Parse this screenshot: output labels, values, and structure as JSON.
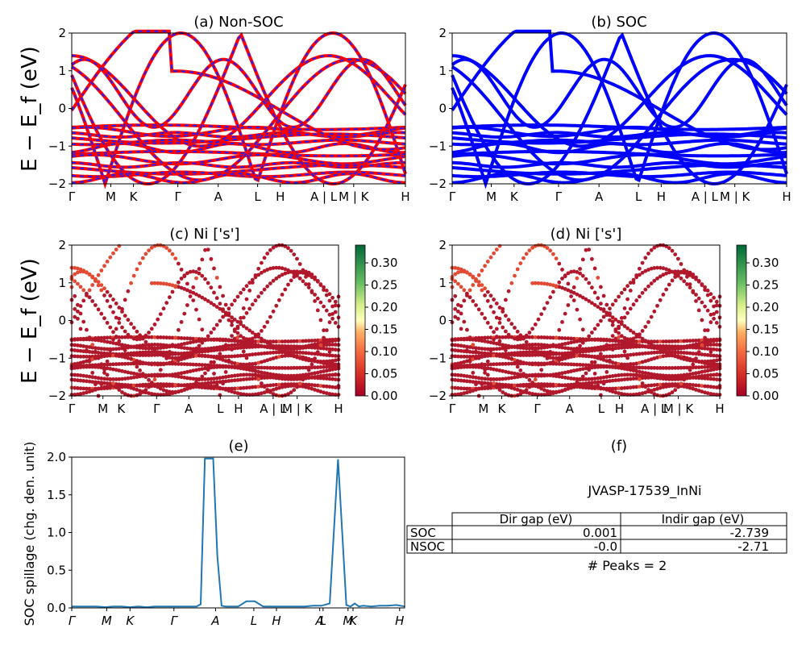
{
  "panels": {
    "a": {
      "title": "(a) Non-SOC",
      "ylabel": "E − E_f (eV)"
    },
    "b": {
      "title": "(b) SOC"
    },
    "c": {
      "title": "(c)  Ni ['s']",
      "ylabel": "E − E_f (eV)"
    },
    "d": {
      "title": "(d) Ni ['s']"
    },
    "e": {
      "title": "(e)",
      "ylabel": "SOC spillage (chg. den. unit)"
    },
    "f": {
      "title": "(f)",
      "material": "JVASP-17539_InNi",
      "peaks": "# Peaks = 2"
    }
  },
  "kpath_labels": [
    "Γ",
    "M",
    "K",
    "Γ",
    "A",
    "L",
    "H",
    "A | L",
    "M | K",
    "H"
  ],
  "kpath_labels_cd": [
    "Γ",
    "M",
    "K",
    "Γ",
    "A",
    "L",
    "H",
    "A | L",
    "M | K",
    "H"
  ],
  "kpath_labels_e": [
    "Γ",
    "M",
    "K",
    "Γ",
    "A",
    "L",
    "H",
    "A",
    "L",
    "M",
    "K",
    "H"
  ],
  "energy_ticks": [
    "2",
    "1",
    "0",
    "−1",
    "−2"
  ],
  "spillage_ticks": [
    "2.0",
    "1.5",
    "1.0",
    "0.5",
    "0.0"
  ],
  "colorbar_ticks": [
    "0.30",
    "0.25",
    "0.20",
    "0.15",
    "0.10",
    "0.05",
    "0.00"
  ],
  "gap_table": {
    "headers": [
      "",
      "Dir gap (eV)",
      "Indir gap (eV)"
    ],
    "rows": [
      {
        "label": "SOC",
        "dir": "0.001",
        "indir": "-2.739"
      },
      {
        "label": "NSOC",
        "dir": "-0.0",
        "indir": "-2.71"
      }
    ]
  },
  "colors": {
    "nonsoc": "#ff0000",
    "nonsoc_dash": "#1f1fff",
    "soc": "#0000ff",
    "spillage": "#1f77b4"
  },
  "chart_data": [
    {
      "type": "line",
      "title": "(e)",
      "ylabel": "SOC spillage (chg. den. unit)",
      "ylim": [
        0,
        2.05
      ],
      "x_labels": [
        "Γ",
        "M",
        "K",
        "Γ",
        "A",
        "L",
        "H",
        "A",
        "L",
        "M",
        "K",
        "H"
      ],
      "x": [
        0,
        0.1,
        0.2,
        0.3,
        0.4,
        0.5,
        0.6,
        0.7,
        0.8,
        0.9,
        1.0,
        1.1,
        1.2,
        1.3,
        1.4,
        1.5,
        1.55,
        1.6,
        1.65,
        1.7,
        1.75,
        1.8,
        1.85,
        1.9,
        1.95,
        2.0,
        2.1,
        2.2,
        2.3,
        2.4,
        2.5,
        2.6,
        2.7,
        2.8,
        2.9,
        3.0,
        3.1,
        3.2,
        3.3,
        3.35,
        3.4,
        3.45,
        3.5,
        3.6,
        3.7,
        3.8,
        3.9,
        4.0
      ],
      "y": [
        0.02,
        0.02,
        0.02,
        0.02,
        0.01,
        0.02,
        0.02,
        0.01,
        0.02,
        0.01,
        0.02,
        0.02,
        0.02,
        0.02,
        0.02,
        0.02,
        0.05,
        2.03,
        2.03,
        2.03,
        0.7,
        0.03,
        0.02,
        0.02,
        0.02,
        0.02,
        0.09,
        0.09,
        0.02,
        0.02,
        0.02,
        0.02,
        0.02,
        0.02,
        0.03,
        0.03,
        0.06,
        2.02,
        0.04,
        0.02,
        0.06,
        0.02,
        0.03,
        0.02,
        0.03,
        0.03,
        0.04,
        0.02
      ]
    },
    {
      "type": "table",
      "title": "(f)",
      "columns": [
        "",
        "Dir gap (eV)",
        "Indir gap (eV)"
      ],
      "rows": [
        [
          "SOC",
          "0.001",
          "-2.739"
        ],
        [
          "NSOC",
          "-0.0",
          "-2.71"
        ]
      ]
    }
  ]
}
